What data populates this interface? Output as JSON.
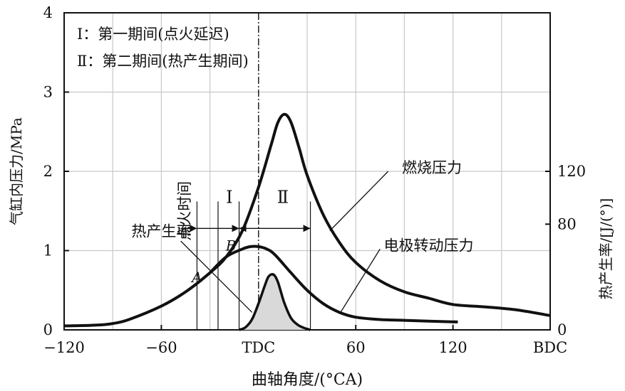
{
  "chart_data": {
    "type": "line",
    "title": "",
    "xlabel": "曲轴角度/(°CA)",
    "ylabel_left": "气缸内压力/MPa",
    "ylabel_right": "热产生率/[J/(°)]",
    "xlim": [
      -120,
      180
    ],
    "ylim_left": [
      0,
      4
    ],
    "ylim_right": [
      0,
      240
    ],
    "grid": true,
    "x_ticks": [
      {
        "value": -120,
        "label": "−120"
      },
      {
        "value": -60,
        "label": "−60"
      },
      {
        "value": 0,
        "label": "TDC"
      },
      {
        "value": 60,
        "label": "60"
      },
      {
        "value": 120,
        "label": "120"
      },
      {
        "value": 180,
        "label": "BDC"
      }
    ],
    "y_ticks_left": [
      {
        "value": 0,
        "label": "0"
      },
      {
        "value": 1,
        "label": "1"
      },
      {
        "value": 2,
        "label": "2"
      },
      {
        "value": 3,
        "label": "3"
      },
      {
        "value": 4,
        "label": "4"
      }
    ],
    "y_ticks_right": [
      {
        "value": 0,
        "label": "0"
      },
      {
        "value": 80,
        "label": "80"
      },
      {
        "value": 120,
        "label": "120"
      }
    ],
    "legend_lines": [
      "Ⅰ：第一期间(点火延迟)",
      "Ⅱ：第二期间(热产生期间)"
    ],
    "series": [
      {
        "name": "燃烧压力",
        "x": [
          -120,
          -100,
          -90,
          -80,
          -60,
          -45,
          -30,
          -20,
          -10,
          0,
          8,
          12,
          16,
          20,
          25,
          30,
          40,
          50,
          60,
          75,
          90,
          105,
          120,
          140,
          160,
          180
        ],
        "y": [
          0.05,
          0.06,
          0.08,
          0.13,
          0.3,
          0.48,
          0.72,
          0.92,
          1.25,
          1.8,
          2.35,
          2.62,
          2.72,
          2.62,
          2.3,
          1.95,
          1.45,
          1.1,
          0.85,
          0.62,
          0.48,
          0.4,
          0.32,
          0.29,
          0.25,
          0.18
        ]
      },
      {
        "name": "电极转动压力",
        "x": [
          -30,
          -20,
          -10,
          -5,
          0,
          5,
          10,
          20,
          30,
          40,
          50,
          60,
          75,
          90,
          105,
          123
        ],
        "y": [
          0.72,
          0.92,
          1.02,
          1.05,
          1.05,
          1.02,
          0.95,
          0.72,
          0.5,
          0.33,
          0.22,
          0.16,
          0.13,
          0.12,
          0.11,
          0.1
        ]
      },
      {
        "name": "热产生率",
        "axis": "right",
        "x": [
          -12,
          -8,
          -4,
          0,
          4,
          6,
          8,
          10,
          12,
          14,
          16,
          20,
          24,
          28,
          32
        ],
        "y": [
          0,
          2,
          8,
          20,
          34,
          40,
          42,
          41,
          36,
          28,
          20,
          9,
          4,
          1.5,
          0
        ]
      }
    ],
    "annotations": [
      {
        "text": "点火时间",
        "x": -40,
        "y": 1.5
      },
      {
        "text": "Ⅰ",
        "x": -18,
        "y": 1.6
      },
      {
        "text": "Ⅱ",
        "x": 15,
        "y": 1.6
      },
      {
        "text": "A",
        "x": -38,
        "y": 0.6
      },
      {
        "text": "B",
        "x": -17,
        "y": 1.0
      },
      {
        "text": "燃烧压力",
        "x": 107,
        "y": 1.98
      },
      {
        "text": "电极转动压力",
        "x": 105,
        "y": 1.0
      },
      {
        "text": "热产生率",
        "x": -60,
        "y": 1.18
      }
    ]
  }
}
